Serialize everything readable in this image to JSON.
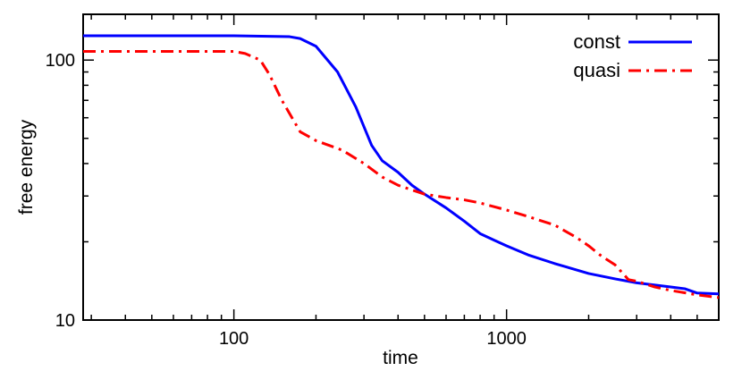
{
  "chart_data": {
    "type": "line",
    "title": "",
    "xlabel": "time",
    "ylabel": "free energy",
    "xscale": "log",
    "yscale": "log",
    "xlim": [
      28,
      6000
    ],
    "ylim": [
      10,
      150
    ],
    "x_ticks": [
      {
        "value": 100,
        "label": "100"
      },
      {
        "value": 1000,
        "label": "1000"
      }
    ],
    "y_ticks": [
      {
        "value": 10,
        "label": "10"
      },
      {
        "value": 100,
        "label": "100"
      }
    ],
    "grid": false,
    "legend_position": "top-right",
    "series": [
      {
        "name": "const",
        "color": "#0000ff",
        "line_style": "solid",
        "x": [
          28,
          60,
          100,
          160,
          175,
          200,
          240,
          280,
          320,
          350,
          400,
          450,
          500,
          600,
          700,
          800,
          900,
          1000,
          1200,
          1500,
          2000,
          2500,
          3000,
          4000,
          4500,
          5000,
          6000
        ],
        "y": [
          124,
          124,
          124,
          123,
          121,
          113,
          90,
          66,
          47,
          41,
          37,
          33,
          30.5,
          27,
          24,
          21.5,
          20.3,
          19.3,
          17.8,
          16.5,
          15.1,
          14.4,
          13.9,
          13.4,
          13.2,
          12.7,
          12.6
        ]
      },
      {
        "name": "quasi",
        "color": "#ff0000",
        "line_style": "dash-dot",
        "x": [
          28,
          60,
          100,
          110,
          125,
          135,
          150,
          175,
          200,
          250,
          300,
          350,
          400,
          500,
          600,
          700,
          800,
          1000,
          1200,
          1500,
          1800,
          2000,
          2200,
          2500,
          2800,
          3000,
          3500,
          4000,
          5000,
          6000
        ],
        "y": [
          108,
          108,
          108,
          106,
          100,
          88,
          70,
          53,
          49,
          45,
          40,
          35.5,
          33,
          30.5,
          29.6,
          29,
          28.2,
          26.5,
          25,
          23.2,
          20.8,
          19.3,
          17.8,
          16.3,
          14.3,
          14.1,
          13.4,
          13,
          12.5,
          12.2
        ]
      }
    ]
  }
}
